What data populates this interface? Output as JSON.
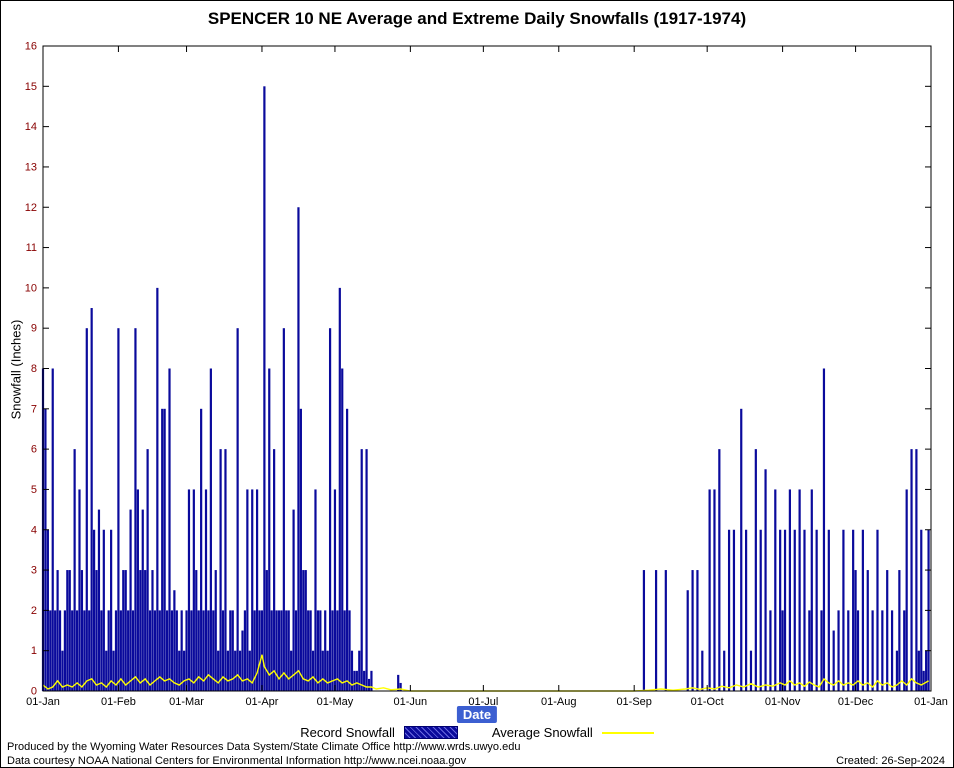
{
  "title": "SPENCER 10 NE Average and Extreme Daily Snowfalls (1917-1974)",
  "axes": {
    "y_label": "Snowfall (Inches)",
    "x_label": "Date"
  },
  "legend": {
    "record_label": "Record Snowfall",
    "average_label": "Average Snowfall"
  },
  "footer": {
    "line1": "Produced by the Wyoming Water Resources Data System/State Climate Office http://www.wrds.uwyo.edu",
    "line2": "Data courtesy NOAA National Centers for Environmental Information http://www.ncei.noaa.gov",
    "created": "Created: 26-Sep-2024"
  },
  "colors": {
    "bar": "#0a0a9c",
    "average_line": "#ffff00",
    "y_tick_label": "#880000",
    "x_tick_label": "#000000",
    "axis": "#000000",
    "date_label_bg": "#3c5fd1"
  },
  "chart_data": {
    "type": "bar",
    "title": "SPENCER 10 NE Average and Extreme Daily Snowfalls (1917-1974)",
    "xlabel": "Date",
    "ylabel": "Snowfall (Inches)",
    "ylim": [
      0,
      16
    ],
    "y_tick_step": 1,
    "x_unit": "day_of_year",
    "grid": false,
    "legend_position": "below",
    "month_tick_days": [
      1,
      32,
      60,
      91,
      121,
      152,
      182,
      213,
      244,
      274,
      305,
      335,
      366
    ],
    "month_tick_labels": [
      "01-Jan",
      "01-Feb",
      "01-Mar",
      "01-Apr",
      "01-May",
      "01-Jun",
      "01-Jul",
      "01-Aug",
      "01-Sep",
      "01-Oct",
      "01-Nov",
      "01-Dec",
      "01-Jan"
    ],
    "series": [
      {
        "name": "Record Snowfall",
        "type": "bar",
        "days": [
          1,
          2,
          3,
          4,
          5,
          6,
          7,
          8,
          9,
          10,
          11,
          12,
          13,
          14,
          15,
          16,
          17,
          18,
          19,
          20,
          21,
          22,
          23,
          24,
          25,
          26,
          27,
          28,
          29,
          30,
          31,
          32,
          33,
          34,
          35,
          36,
          37,
          38,
          39,
          40,
          41,
          42,
          43,
          44,
          45,
          46,
          47,
          48,
          49,
          50,
          51,
          52,
          53,
          54,
          55,
          56,
          57,
          58,
          59,
          60,
          61,
          62,
          63,
          64,
          65,
          66,
          67,
          68,
          69,
          70,
          71,
          72,
          73,
          74,
          75,
          76,
          77,
          78,
          79,
          80,
          81,
          82,
          83,
          84,
          85,
          86,
          87,
          88,
          89,
          90,
          91,
          92,
          93,
          94,
          95,
          96,
          97,
          98,
          99,
          100,
          101,
          102,
          103,
          104,
          105,
          106,
          107,
          108,
          109,
          110,
          111,
          112,
          113,
          114,
          115,
          116,
          117,
          118,
          119,
          120,
          121,
          122,
          123,
          124,
          125,
          126,
          127,
          128,
          129,
          130,
          131,
          132,
          133,
          134,
          135,
          136,
          147,
          148,
          248,
          253,
          257,
          266,
          268,
          270,
          272,
          275,
          277,
          279,
          281,
          283,
          285,
          288,
          290,
          292,
          294,
          296,
          298,
          300,
          302,
          304,
          305,
          306,
          308,
          310,
          312,
          314,
          316,
          317,
          319,
          321,
          322,
          324,
          326,
          328,
          330,
          332,
          334,
          335,
          336,
          338,
          340,
          342,
          344,
          346,
          348,
          350,
          352,
          353,
          355,
          356,
          358,
          360,
          361,
          362,
          363,
          364,
          365
        ],
        "values": [
          8,
          7,
          4,
          2,
          8,
          2,
          3,
          2,
          1,
          2,
          3,
          3,
          2,
          6,
          2,
          5,
          3,
          2,
          9,
          2,
          9.5,
          4,
          3,
          4.5,
          2,
          4,
          1,
          2,
          4,
          1,
          2,
          9,
          2,
          3,
          3,
          2,
          4.5,
          2,
          9,
          5,
          3,
          4.5,
          3,
          6,
          2,
          3,
          2,
          10,
          2,
          7,
          7,
          2,
          8,
          2,
          2.5,
          2,
          1,
          2,
          1,
          2,
          5,
          2,
          5,
          3,
          2,
          7,
          2,
          5,
          2,
          8,
          2,
          3,
          1,
          6,
          2,
          6,
          1,
          2,
          2,
          1,
          9,
          1,
          1.5,
          2,
          5,
          1,
          5,
          2,
          5,
          2,
          2,
          15,
          3,
          8,
          2,
          6,
          2,
          2,
          2,
          9,
          2,
          2,
          1,
          4.5,
          2,
          12,
          7,
          3,
          3,
          2,
          2,
          1,
          5,
          2,
          2,
          1,
          2,
          1,
          9,
          2,
          5,
          2,
          10,
          8,
          2,
          7,
          2,
          1,
          0.5,
          0.5,
          1,
          6,
          0.5,
          6,
          0.3,
          0.5,
          0.4,
          0.2,
          3,
          3,
          3,
          2.5,
          3,
          3,
          1,
          5,
          5,
          6,
          1,
          4,
          4,
          7,
          4,
          1,
          6,
          4,
          5.5,
          2,
          5,
          4,
          2,
          4,
          5,
          4,
          5,
          4,
          2,
          5,
          4,
          2,
          8,
          4,
          1.5,
          2,
          4,
          2,
          4,
          3,
          2,
          4,
          3,
          2,
          4,
          2,
          3,
          2,
          1,
          3,
          2,
          5,
          6,
          6,
          1,
          4,
          0.5,
          1,
          4
        ]
      },
      {
        "name": "Average Snowfall",
        "type": "line",
        "points": [
          [
            1,
            0.15
          ],
          [
            3,
            0.05
          ],
          [
            5,
            0.1
          ],
          [
            7,
            0.25
          ],
          [
            9,
            0.1
          ],
          [
            11,
            0.15
          ],
          [
            13,
            0.1
          ],
          [
            15,
            0.2
          ],
          [
            17,
            0.1
          ],
          [
            19,
            0.25
          ],
          [
            21,
            0.3
          ],
          [
            23,
            0.15
          ],
          [
            25,
            0.2
          ],
          [
            27,
            0.1
          ],
          [
            29,
            0.25
          ],
          [
            31,
            0.15
          ],
          [
            33,
            0.3
          ],
          [
            35,
            0.15
          ],
          [
            37,
            0.25
          ],
          [
            39,
            0.35
          ],
          [
            41,
            0.2
          ],
          [
            43,
            0.3
          ],
          [
            45,
            0.15
          ],
          [
            47,
            0.25
          ],
          [
            49,
            0.35
          ],
          [
            51,
            0.25
          ],
          [
            53,
            0.3
          ],
          [
            55,
            0.2
          ],
          [
            57,
            0.15
          ],
          [
            59,
            0.25
          ],
          [
            61,
            0.3
          ],
          [
            63,
            0.2
          ],
          [
            65,
            0.35
          ],
          [
            67,
            0.25
          ],
          [
            69,
            0.4
          ],
          [
            71,
            0.3
          ],
          [
            73,
            0.2
          ],
          [
            75,
            0.35
          ],
          [
            77,
            0.25
          ],
          [
            79,
            0.3
          ],
          [
            81,
            0.4
          ],
          [
            83,
            0.25
          ],
          [
            85,
            0.3
          ],
          [
            87,
            0.2
          ],
          [
            89,
            0.45
          ],
          [
            91,
            0.9
          ],
          [
            92,
            0.6
          ],
          [
            94,
            0.4
          ],
          [
            96,
            0.5
          ],
          [
            98,
            0.3
          ],
          [
            100,
            0.45
          ],
          [
            102,
            0.3
          ],
          [
            104,
            0.4
          ],
          [
            106,
            0.5
          ],
          [
            108,
            0.3
          ],
          [
            110,
            0.25
          ],
          [
            112,
            0.35
          ],
          [
            114,
            0.2
          ],
          [
            116,
            0.3
          ],
          [
            118,
            0.2
          ],
          [
            120,
            0.25
          ],
          [
            122,
            0.3
          ],
          [
            124,
            0.2
          ],
          [
            126,
            0.25
          ],
          [
            128,
            0.15
          ],
          [
            130,
            0.2
          ],
          [
            132,
            0.15
          ],
          [
            134,
            0.1
          ],
          [
            136,
            0.1
          ],
          [
            138,
            0.05
          ],
          [
            141,
            0.08
          ],
          [
            144,
            0.03
          ],
          [
            148,
            0.05
          ],
          [
            152,
            0
          ],
          [
            182,
            0
          ],
          [
            213,
            0
          ],
          [
            244,
            0
          ],
          [
            250,
            0.02
          ],
          [
            255,
            0.05
          ],
          [
            260,
            0.02
          ],
          [
            265,
            0.05
          ],
          [
            268,
            0.08
          ],
          [
            271,
            0.04
          ],
          [
            274,
            0.08
          ],
          [
            277,
            0.05
          ],
          [
            280,
            0.12
          ],
          [
            283,
            0.08
          ],
          [
            286,
            0.15
          ],
          [
            289,
            0.1
          ],
          [
            292,
            0.18
          ],
          [
            295,
            0.1
          ],
          [
            298,
            0.15
          ],
          [
            301,
            0.12
          ],
          [
            304,
            0.2
          ],
          [
            306,
            0.15
          ],
          [
            308,
            0.25
          ],
          [
            310,
            0.15
          ],
          [
            312,
            0.2
          ],
          [
            314,
            0.12
          ],
          [
            316,
            0.22
          ],
          [
            318,
            0.15
          ],
          [
            320,
            0.1
          ],
          [
            322,
            0.3
          ],
          [
            324,
            0.2
          ],
          [
            326,
            0.15
          ],
          [
            328,
            0.25
          ],
          [
            330,
            0.15
          ],
          [
            332,
            0.2
          ],
          [
            334,
            0.15
          ],
          [
            336,
            0.25
          ],
          [
            338,
            0.15
          ],
          [
            340,
            0.2
          ],
          [
            342,
            0.1
          ],
          [
            344,
            0.25
          ],
          [
            346,
            0.15
          ],
          [
            348,
            0.2
          ],
          [
            350,
            0.1
          ],
          [
            352,
            0.15
          ],
          [
            354,
            0.25
          ],
          [
            356,
            0.15
          ],
          [
            358,
            0.3
          ],
          [
            360,
            0.2
          ],
          [
            362,
            0.15
          ],
          [
            365,
            0.25
          ]
        ]
      }
    ]
  }
}
